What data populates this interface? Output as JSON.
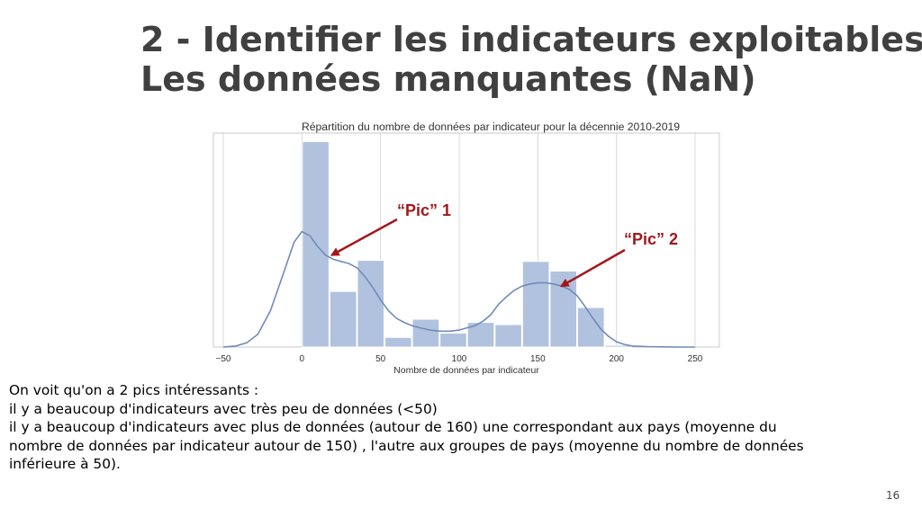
{
  "slide": {
    "title_line1": "2 - Identifier les indicateurs exploitables",
    "title_line2": "Les données manquantes (NaN)",
    "body_lines": [
      "On voit qu'on a 2 pics intéressants :",
      "il y a beaucoup d'indicateurs avec très peu de données (<50)",
      "il y a beaucoup d'indicateurs avec plus de données (autour de 160) une correspondant aux pays (moyenne du",
      "nombre de données par indicateur autour de 150) , l'autre aux groupes de pays (moyenne du nombre de données",
      "inférieure à 50)."
    ],
    "page_number": "16"
  },
  "chart_data": {
    "type": "bar",
    "title": "Répartition du nombre de données par indicateur pour la décennie 2010-2019",
    "xlabel": "Nombre de données par indicateur",
    "ylabel": "",
    "xlim": [
      -50,
      250
    ],
    "ylim": [
      0,
      1
    ],
    "xticks": [
      -50,
      0,
      50,
      100,
      150,
      200,
      250
    ],
    "xtick_labels": [
      "−50",
      "0",
      "50",
      "100",
      "150",
      "200",
      "250"
    ],
    "grid": true,
    "bin_width": 17.5,
    "bins": [
      {
        "x0": 0,
        "x1": 17.5,
        "value": 0.96
      },
      {
        "x0": 17.5,
        "x1": 35,
        "value": 0.26
      },
      {
        "x0": 35,
        "x1": 52.5,
        "value": 0.405
      },
      {
        "x0": 52.5,
        "x1": 70,
        "value": 0.045
      },
      {
        "x0": 70,
        "x1": 87.5,
        "value": 0.13
      },
      {
        "x0": 87.5,
        "x1": 105,
        "value": 0.065
      },
      {
        "x0": 105,
        "x1": 122.5,
        "value": 0.115
      },
      {
        "x0": 122.5,
        "x1": 140,
        "value": 0.105
      },
      {
        "x0": 140,
        "x1": 157.5,
        "value": 0.4
      },
      {
        "x0": 157.5,
        "x1": 175,
        "value": 0.355
      },
      {
        "x0": 175,
        "x1": 192.5,
        "value": 0.185
      },
      {
        "x0": 192.5,
        "x1": 210,
        "value": 0.008
      }
    ],
    "kde": {
      "x": [
        -50,
        -42,
        -35,
        -28,
        -20,
        -12,
        -5,
        0,
        5,
        10,
        15,
        20,
        25,
        30,
        35,
        40,
        45,
        50,
        55,
        60,
        65,
        70,
        75,
        80,
        85,
        90,
        95,
        100,
        105,
        110,
        115,
        120,
        125,
        130,
        135,
        140,
        145,
        150,
        155,
        160,
        165,
        170,
        175,
        180,
        185,
        190,
        195,
        200,
        205,
        210,
        220,
        230,
        240,
        250
      ],
      "y": [
        0.0,
        0.005,
        0.02,
        0.06,
        0.17,
        0.34,
        0.49,
        0.54,
        0.52,
        0.47,
        0.43,
        0.41,
        0.4,
        0.39,
        0.37,
        0.33,
        0.28,
        0.22,
        0.17,
        0.135,
        0.115,
        0.1,
        0.09,
        0.082,
        0.076,
        0.074,
        0.075,
        0.08,
        0.09,
        0.1,
        0.12,
        0.15,
        0.2,
        0.235,
        0.265,
        0.285,
        0.295,
        0.3,
        0.3,
        0.295,
        0.285,
        0.27,
        0.24,
        0.19,
        0.135,
        0.085,
        0.05,
        0.025,
        0.012,
        0.005,
        0.002,
        0.001,
        0.0,
        0.0
      ]
    },
    "annotations": [
      {
        "text": "“Pic” 1",
        "point_x": 19,
        "point_y": 0.43
      },
      {
        "text": "“Pic” 2",
        "point_x": 165,
        "point_y": 0.285
      }
    ],
    "colors": {
      "bar": "#b1c2df",
      "kde": "#6f8bb8",
      "annotation": "#a3171a",
      "grid": "#d8d8d8",
      "frame": "#c8c8c8"
    }
  }
}
